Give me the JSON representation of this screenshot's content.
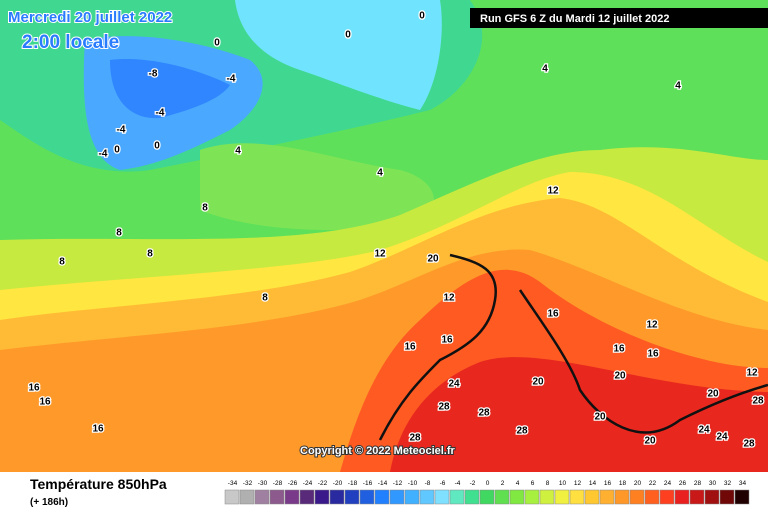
{
  "header": {
    "date": "Mercredi 20 juillet 2022",
    "local_time": "2:00 locale",
    "run": "Run GFS 6 Z du Mardi 12 juillet 2022"
  },
  "footer": {
    "copyright": "Copyright © 2022 Meteociel.fr",
    "variable": "Température 850hPa",
    "lead_time": "(+ 186h)"
  },
  "legend": {
    "values": [
      -34,
      -32,
      -30,
      -28,
      -26,
      -24,
      -22,
      -20,
      -18,
      -16,
      -14,
      -12,
      -10,
      -8,
      -6,
      -4,
      -2,
      0,
      2,
      4,
      6,
      8,
      10,
      12,
      14,
      16,
      18,
      20,
      22,
      24,
      26,
      28,
      30,
      32,
      34
    ],
    "colors": [
      "#c8c8c8",
      "#b0b0b0",
      "#a080a0",
      "#8c5a8c",
      "#7a3a8a",
      "#5a2a7a",
      "#3a1a8a",
      "#2a2aa0",
      "#2040c0",
      "#2060e0",
      "#2080ff",
      "#3098ff",
      "#40b0ff",
      "#60c8ff",
      "#80e0ff",
      "#60e8c0",
      "#40e090",
      "#40d860",
      "#60e050",
      "#80e840",
      "#a8f040",
      "#d0f040",
      "#f0f040",
      "#ffe040",
      "#ffc830",
      "#ffb030",
      "#ff9828",
      "#ff8020",
      "#ff6020",
      "#ff4020",
      "#e82020",
      "#c81818",
      "#a01010",
      "#700808",
      "#200000"
    ]
  },
  "map": {
    "contour_labels": [
      0,
      0,
      0,
      -8,
      -4,
      -4,
      -4,
      -4,
      0,
      0,
      4,
      4,
      4,
      4,
      8,
      8,
      8,
      8,
      8,
      12,
      12,
      12,
      12,
      12,
      16,
      16,
      16,
      16,
      16,
      16,
      16,
      16,
      20,
      20,
      20,
      20,
      20,
      20,
      24,
      24,
      24,
      28,
      28,
      28,
      28,
      28,
      28
    ]
  }
}
